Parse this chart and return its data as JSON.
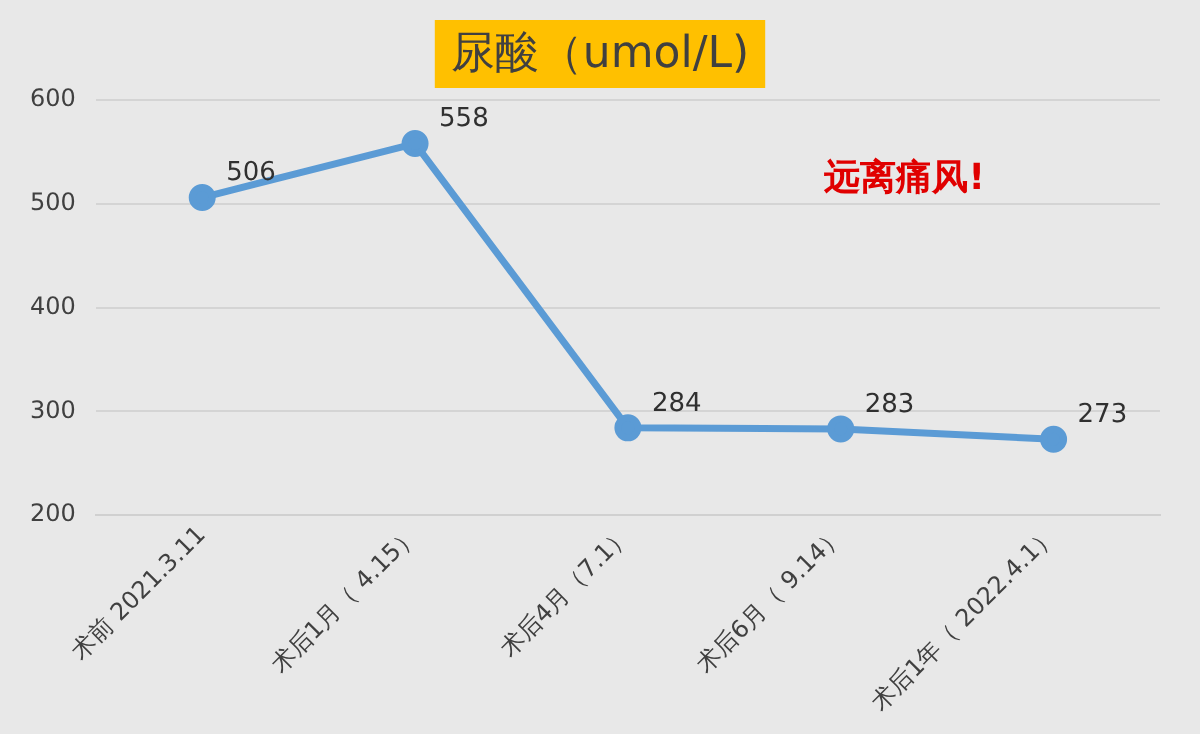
{
  "chart_data": {
    "type": "line",
    "title": "尿酸（umol/L)",
    "categories": [
      "术前 2021.3.11",
      "术后1月（ 4.15）",
      "术后4月（7.1）",
      "术后6月（ 9.14）",
      "术后1年（ 2022.4.1）"
    ],
    "series": [
      {
        "color": "#5b9bd5",
        "values": [
          506,
          558,
          284,
          283,
          273
        ]
      }
    ],
    "ylim": [
      200,
      600
    ],
    "yticks": [
      200,
      300,
      400,
      500,
      600
    ],
    "grid": "y",
    "marker": "circle",
    "line_style": "solid",
    "data_labels": true,
    "legend": false,
    "annotations": [
      "远离痛风!"
    ]
  }
}
